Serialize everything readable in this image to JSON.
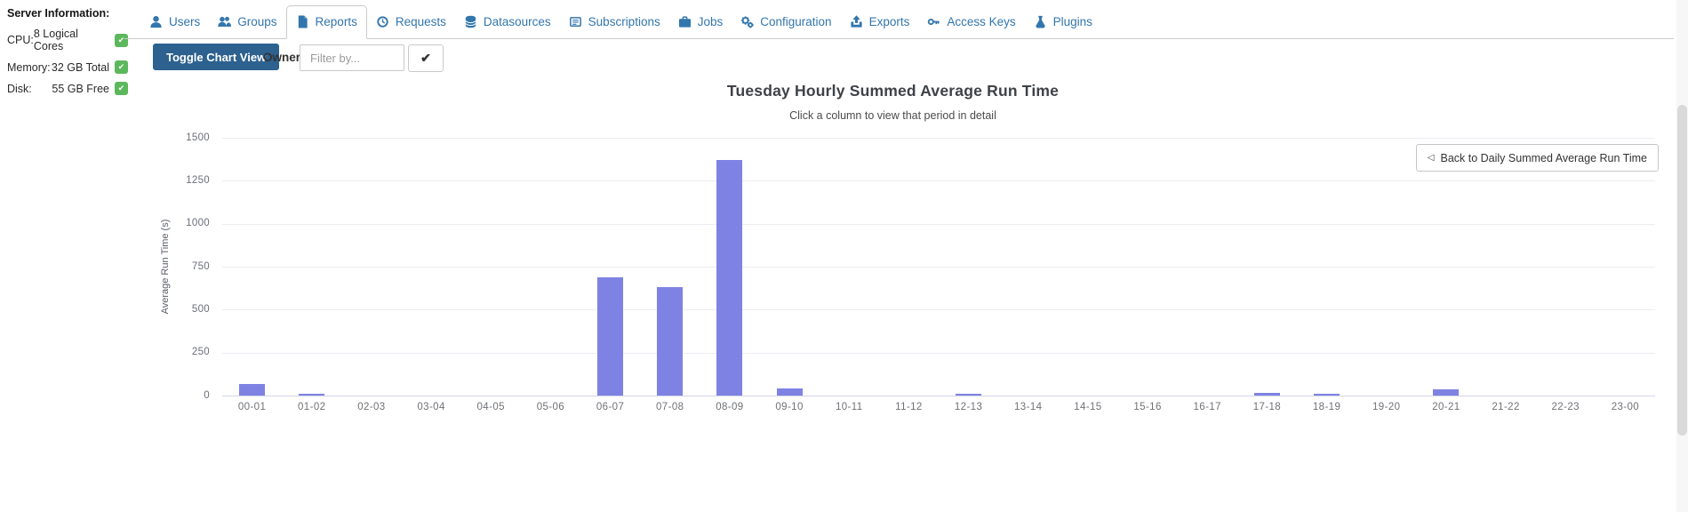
{
  "glyphs": {
    "check": "✔"
  },
  "sidebar": {
    "title": "Server Information:",
    "items": [
      {
        "label": "CPU:",
        "value": "8 Logical Cores",
        "status_icon": "check-badge-icon"
      },
      {
        "label": "Memory:",
        "value": "32 GB Total",
        "status_icon": "check-badge-icon"
      },
      {
        "label": "Disk:",
        "value": "55 GB Free",
        "status_icon": "check-badge-icon"
      }
    ]
  },
  "tabs": [
    {
      "label": "Users",
      "icon": "user-icon",
      "active": false
    },
    {
      "label": "Groups",
      "icon": "users-icon",
      "active": false
    },
    {
      "label": "Reports",
      "icon": "file-icon",
      "active": true
    },
    {
      "label": "Requests",
      "icon": "history-icon",
      "active": false
    },
    {
      "label": "Datasources",
      "icon": "database-icon",
      "active": false
    },
    {
      "label": "Subscriptions",
      "icon": "envelope-lines-icon",
      "active": false
    },
    {
      "label": "Jobs",
      "icon": "briefcase-icon",
      "active": false
    },
    {
      "label": "Configuration",
      "icon": "gears-icon",
      "active": false
    },
    {
      "label": "Exports",
      "icon": "upload-icon",
      "active": false
    },
    {
      "label": "Access Keys",
      "icon": "key-icon",
      "active": false
    },
    {
      "label": "Plugins",
      "icon": "flask-icon",
      "active": false
    }
  ],
  "toolbar": {
    "toggle_chart_view_label": "Toggle Chart View",
    "owner_label": "Owner",
    "owner_filter_placeholder": "Filter by...",
    "owner_filter_value": ""
  },
  "chart": {
    "back_button": {
      "glyph": "◁",
      "label": "Back to Daily Summed Average Run Time"
    }
  },
  "chart_data": {
    "type": "bar",
    "title": "Tuesday Hourly Summed Average Run Time",
    "subtitle": "Click a column to view that period in detail",
    "ylabel": "Average Run Time (s)",
    "xlabel": "",
    "categories": [
      "00-01",
      "01-02",
      "02-03",
      "03-04",
      "04-05",
      "05-06",
      "06-07",
      "07-08",
      "08-09",
      "09-10",
      "10-11",
      "11-12",
      "12-13",
      "13-14",
      "14-15",
      "15-16",
      "16-17",
      "17-18",
      "18-19",
      "19-20",
      "20-21",
      "21-22",
      "22-23",
      "23-00"
    ],
    "values": [
      68,
      10,
      0,
      0,
      0,
      0,
      690,
      630,
      1370,
      40,
      0,
      0,
      8,
      0,
      0,
      0,
      0,
      16,
      12,
      0,
      38,
      0,
      0,
      0
    ],
    "yticks": [
      0,
      250,
      500,
      750,
      1000,
      1250,
      1500
    ],
    "ylim": [
      0,
      1500
    ],
    "grid": true,
    "legend": "none",
    "bar_color": "#7e82e2"
  },
  "colors": {
    "accent_blue": "#3376ad",
    "button_dark_blue": "#2d618f",
    "badge_green": "#5cb85c",
    "bar_purple": "#7e82e2",
    "gridline": "#ecedf4"
  }
}
